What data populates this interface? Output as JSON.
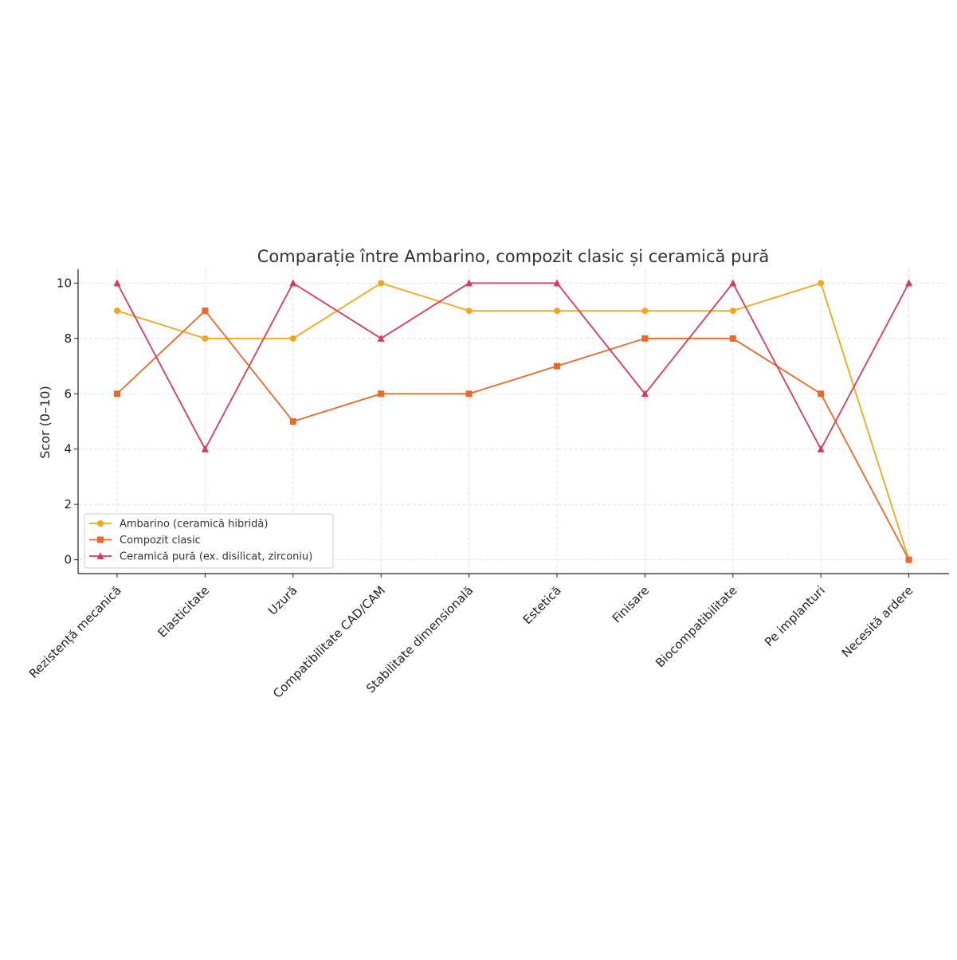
{
  "chart_data": {
    "type": "line",
    "title": "Comparație între Ambarino, compozit clasic și ceramică pură",
    "xlabel": "",
    "ylabel": "Scor (0–10)",
    "ylim": [
      -0.5,
      10.5
    ],
    "yticks": [
      0,
      2,
      4,
      6,
      8,
      10
    ],
    "grid": true,
    "legend_position": "lower-left",
    "categories": [
      "Rezistență mecanică",
      "Elasticitate",
      "Uzură",
      "Compatibilitate CAD/CAM",
      "Stabilitate dimensională",
      "Estetică",
      "Finisare",
      "Biocompatibilitate",
      "Pe implanturi",
      "Necesită ardere"
    ],
    "series": [
      {
        "name": "Ambarino (ceramică hibridă)",
        "color": "#f2a71b",
        "marker": "circle",
        "values": [
          9,
          8,
          8,
          10,
          9,
          9,
          9,
          9,
          10,
          0
        ]
      },
      {
        "name": "Compozit clasic",
        "color": "#e8692a",
        "marker": "square",
        "values": [
          6,
          9,
          5,
          6,
          6,
          7,
          8,
          8,
          6,
          0
        ]
      },
      {
        "name": "Ceramică pură (ex. disilicat, zirconiu)",
        "color": "#d63a5e",
        "marker": "triangle",
        "values": [
          10,
          4,
          10,
          8,
          10,
          10,
          6,
          10,
          4,
          10
        ]
      }
    ]
  }
}
